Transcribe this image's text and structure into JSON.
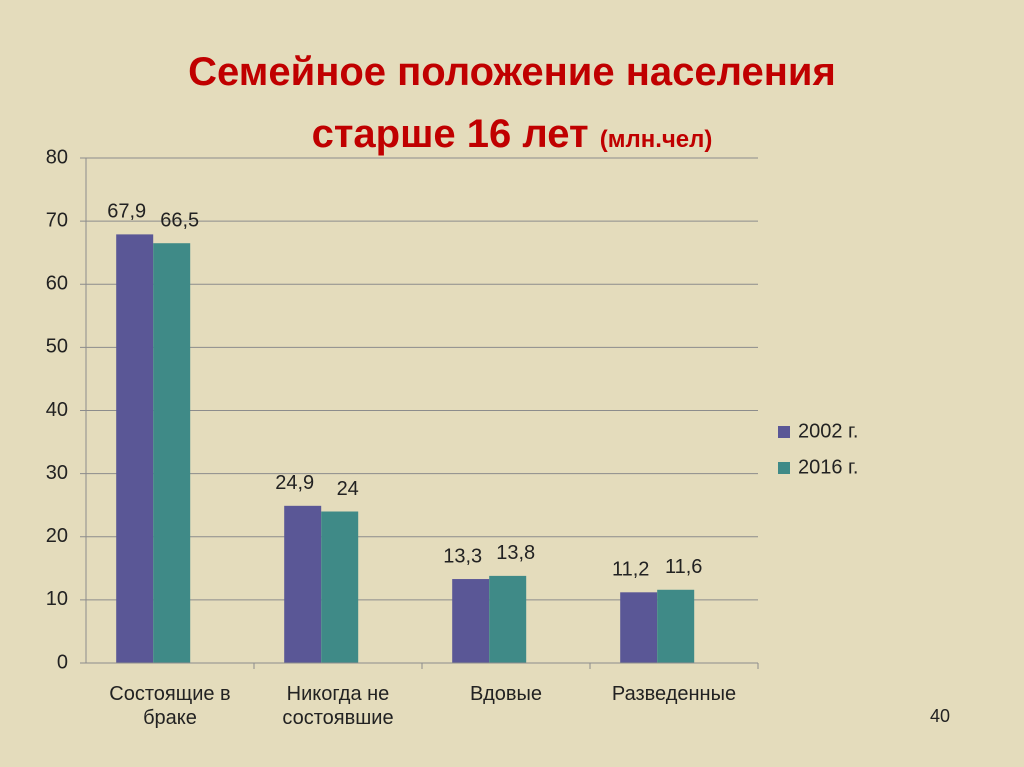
{
  "chart_data": {
    "type": "bar",
    "title": [
      "Семейное положение населения",
      "старше 16 лет"
    ],
    "subtitle": "(млн.чел)",
    "categories": [
      "Состоящие в браке",
      "Никогда не состоявшие",
      "Вдовые",
      "Разведенные"
    ],
    "series": [
      {
        "name": "2002 г.",
        "color": "#5a5796",
        "values": [
          67.9,
          24.9,
          13.3,
          11.2
        ],
        "value_labels": [
          "67,9",
          "24,9",
          "13,3",
          "11,2"
        ]
      },
      {
        "name": "2016 г.",
        "color": "#3f8a87",
        "values": [
          66.5,
          24,
          13.8,
          11.6
        ],
        "value_labels": [
          "66,5",
          "24",
          "13,8",
          "11,6"
        ]
      }
    ],
    "ylim": [
      0,
      80
    ],
    "yticks": [
      0,
      10,
      20,
      30,
      40,
      50,
      60,
      70,
      80
    ],
    "grid": true,
    "legend": "right"
  },
  "slide_number": "40"
}
